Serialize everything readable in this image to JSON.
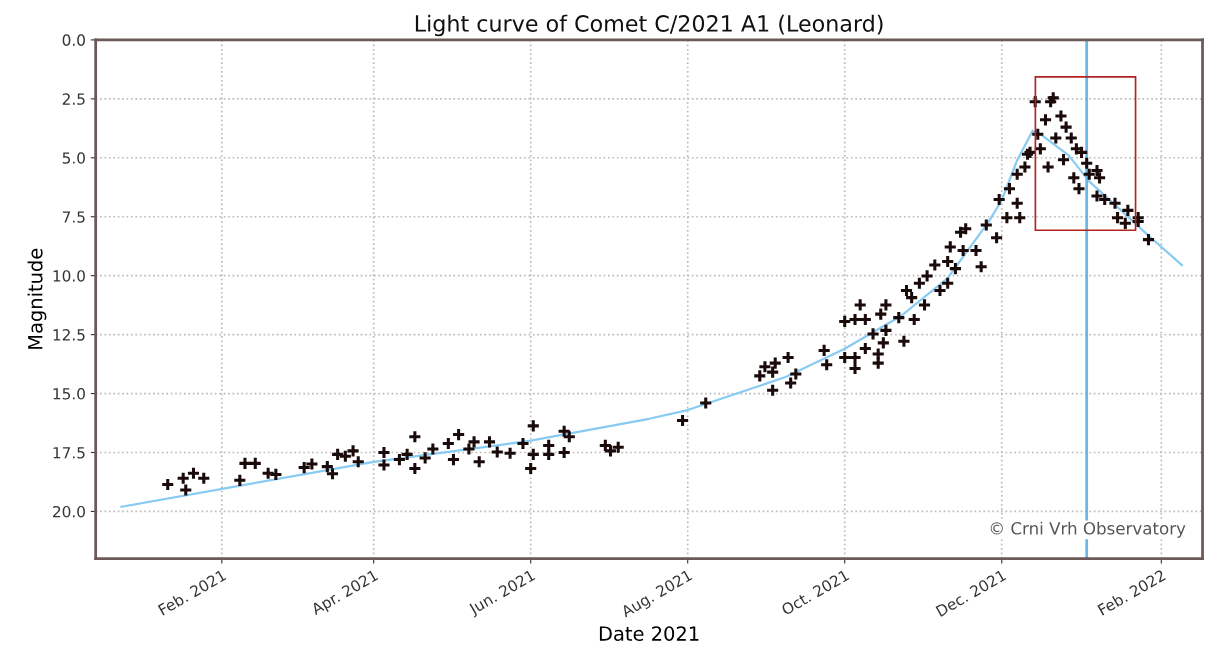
{
  "chart_data": {
    "type": "scatter",
    "title": "Light curve of Comet C/2021 A1 (Leonard)",
    "xlabel": "Date 2021",
    "ylabel": "Magnitude",
    "xlim": [
      "2020-12-14",
      "2022-02-17"
    ],
    "xticks": [
      {
        "value": "2021-02-01",
        "label": "Feb. 2021"
      },
      {
        "value": "2021-04-01",
        "label": "Apr. 2021"
      },
      {
        "value": "2021-06-01",
        "label": "Jun. 2021"
      },
      {
        "value": "2021-08-01",
        "label": "Aug. 2021"
      },
      {
        "value": "2021-10-01",
        "label": "Oct. 2021"
      },
      {
        "value": "2021-12-01",
        "label": "Dec. 2021"
      },
      {
        "value": "2022-02-01",
        "label": "Feb. 2022"
      }
    ],
    "ylim": [
      22,
      0
    ],
    "yticks": [
      {
        "value": 0,
        "label": "0.0"
      },
      {
        "value": 2.5,
        "label": "2.5"
      },
      {
        "value": 5,
        "label": "5.0"
      },
      {
        "value": 7.5,
        "label": "7.5"
      },
      {
        "value": 10,
        "label": "10.0"
      },
      {
        "value": 12.5,
        "label": "12.5"
      },
      {
        "value": 15,
        "label": "15.0"
      },
      {
        "value": 17.5,
        "label": "17.5"
      },
      {
        "value": 20,
        "label": "20.0"
      }
    ],
    "grid": true,
    "legend": false,
    "ref_lines": [
      {
        "axis": "x",
        "value": "2022-01-03",
        "color": "#6ab8e8"
      }
    ],
    "annotations": [
      "© Crni Vrh Observatory"
    ],
    "series": [
      {
        "marker": "cross",
        "color": "#1a0a0a",
        "x": [
          "2021-01-11",
          "2021-01-17",
          "2021-01-18",
          "2021-01-21",
          "2021-01-25",
          "2021-02-08",
          "2021-02-10",
          "2021-02-14",
          "2021-02-19",
          "2021-02-22",
          "2021-03-05",
          "2021-03-08",
          "2021-03-14",
          "2021-03-16",
          "2021-03-18",
          "2021-03-21",
          "2021-03-24",
          "2021-03-26",
          "2021-04-05",
          "2021-04-05",
          "2021-04-11",
          "2021-04-14",
          "2021-04-17",
          "2021-04-17",
          "2021-04-21",
          "2021-04-24",
          "2021-04-30",
          "2021-05-04",
          "2021-05-02",
          "2021-05-08",
          "2021-05-10",
          "2021-05-12",
          "2021-05-16",
          "2021-05-19",
          "2021-05-24",
          "2021-05-29",
          "2021-06-02",
          "2021-06-01",
          "2021-06-02",
          "2021-06-08",
          "2021-06-08",
          "2021-06-14",
          "2021-06-14",
          "2021-06-16",
          "2021-06-30",
          "2021-07-02",
          "2021-07-05",
          "2021-07-30",
          "2021-08-08",
          "2021-08-29",
          "2021-08-31",
          "2021-09-03",
          "2021-09-04",
          "2021-09-03",
          "2021-09-09",
          "2021-09-10",
          "2021-09-12",
          "2021-09-23",
          "2021-09-24",
          "2021-10-01",
          "2021-10-01",
          "2021-10-05",
          "2021-10-05",
          "2021-10-05",
          "2021-10-07",
          "2021-10-09",
          "2021-10-09",
          "2021-10-12",
          "2021-10-14",
          "2021-10-14",
          "2021-10-15",
          "2021-10-17",
          "2021-10-17",
          "2021-10-16",
          "2021-10-22",
          "2021-10-24",
          "2021-10-25",
          "2021-10-27",
          "2021-10-28",
          "2021-10-30",
          "2021-11-01",
          "2021-11-02",
          "2021-11-05",
          "2021-11-07",
          "2021-11-10",
          "2021-11-10",
          "2021-11-11",
          "2021-11-13",
          "2021-11-15",
          "2021-11-17",
          "2021-11-16",
          "2021-11-21",
          "2021-11-23",
          "2021-11-25",
          "2021-11-29",
          "2021-11-30",
          "2021-12-03",
          "2021-12-04",
          "2021-12-07",
          "2021-12-08",
          "2021-12-07",
          "2021-12-10",
          "2021-12-11",
          "2021-12-12",
          "2021-12-14",
          "2021-12-15",
          "2021-12-16",
          "2021-12-18",
          "2021-12-19",
          "2021-12-20",
          "2021-12-21",
          "2021-12-22",
          "2021-12-24",
          "2021-12-25",
          "2021-12-26",
          "2021-12-28",
          "2021-12-29",
          "2021-12-30",
          "2021-12-31",
          "2022-01-01",
          "2022-01-03",
          "2022-01-04",
          "2022-01-07",
          "2022-01-08",
          "2022-01-07",
          "2022-01-10",
          "2022-01-14",
          "2022-01-15",
          "2022-01-18",
          "2022-01-19",
          "2022-01-23",
          "2022-01-23",
          "2022-01-27"
        ],
        "values": [
          18.86,
          18.59,
          19.09,
          18.38,
          18.59,
          18.68,
          17.96,
          17.96,
          18.38,
          18.43,
          18.14,
          17.99,
          18.1,
          18.4,
          17.58,
          17.66,
          17.43,
          17.89,
          17.5,
          18.03,
          17.8,
          17.58,
          16.83,
          18.18,
          17.73,
          17.35,
          17.12,
          16.74,
          17.8,
          17.35,
          17.05,
          17.89,
          17.05,
          17.48,
          17.53,
          17.12,
          16.37,
          18.18,
          17.58,
          17.2,
          17.58,
          16.6,
          17.5,
          16.83,
          17.2,
          17.43,
          17.28,
          16.14,
          15.4,
          14.25,
          13.86,
          14.09,
          13.71,
          14.86,
          13.47,
          14.55,
          14.17,
          13.17,
          13.78,
          11.94,
          13.47,
          13.47,
          13.94,
          11.86,
          11.24,
          11.86,
          13.09,
          12.47,
          13.32,
          13.71,
          11.63,
          11.24,
          12.32,
          12.85,
          11.78,
          12.78,
          10.63,
          10.93,
          11.86,
          10.32,
          11.24,
          10.01,
          9.55,
          10.63,
          10.32,
          9.4,
          8.78,
          9.7,
          8.16,
          8.01,
          8.93,
          8.93,
          9.62,
          7.85,
          8.39,
          6.77,
          7.54,
          6.31,
          6.93,
          7.54,
          5.7,
          5.39,
          4.85,
          4.77,
          2.62,
          4.0,
          4.62,
          3.39,
          5.39,
          2.62,
          2.46,
          4.16,
          3.23,
          5.08,
          3.7,
          4.16,
          5.85,
          4.62,
          6.31,
          4.77,
          5.23,
          5.7,
          5.54,
          5.85,
          6.62,
          6.77,
          6.93,
          7.54,
          7.78,
          7.23,
          7.54,
          7.7,
          8.47
        ]
      },
      {
        "type": "line",
        "marker": "none",
        "color": "#87cbf2",
        "x": [
          "2020-12-24",
          "2021-04-01",
          "2021-06-01",
          "2021-07-17",
          "2021-08-01",
          "2021-09-08",
          "2021-10-01",
          "2021-10-23",
          "2021-11-10",
          "2021-11-26",
          "2021-12-01",
          "2021-12-07",
          "2021-12-13",
          "2021-12-16",
          "2021-12-27",
          "2022-01-04",
          "2022-01-15",
          "2022-01-27",
          "2022-02-09"
        ],
        "values": [
          19.8,
          17.9,
          17.0,
          16.07,
          15.7,
          14.3,
          13.1,
          11.7,
          10.1,
          7.7,
          6.8,
          5.1,
          3.85,
          4.0,
          4.9,
          6.0,
          7.1,
          8.3,
          9.55
        ]
      }
    ]
  }
}
